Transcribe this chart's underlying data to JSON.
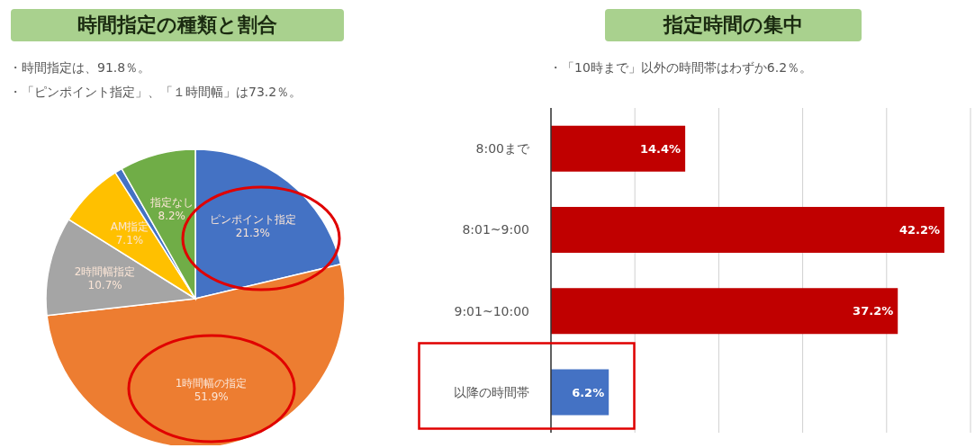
{
  "chart_data": [
    {
      "type": "pie",
      "title": "時間指定の種類と割合",
      "annotations": [
        "・時間指定は、91.8％。",
        "・「ピンポイント指定」、「１時間幅」は73.2％。"
      ],
      "categories": [
        "ピンポイント指定",
        "1時間幅の指定",
        "2時間幅指定",
        "AM指定",
        null,
        "指定なし"
      ],
      "values": [
        21.3,
        51.9,
        10.7,
        7.1,
        0.8,
        8.2
      ],
      "colors": [
        "#4472c4",
        "#ed7d31",
        "#a5a5a5",
        "#ffc000",
        "#4472c4",
        "#70ad47"
      ],
      "value_labels": [
        "21.3%",
        "51.9%",
        "10.7%",
        "7.1%",
        null,
        "8.2%"
      ]
    },
    {
      "type": "bar",
      "orientation": "horizontal",
      "title": "指定時間の集中",
      "annotations": [
        "・「10時まで」以外の時間帯はわずか6.2％。"
      ],
      "categories": [
        "8:00まで",
        "8:01~9:00",
        "9:01~10:00",
        "以降の時間帯"
      ],
      "values": [
        14.4,
        42.2,
        37.2,
        6.2
      ],
      "colors": [
        "#c00000",
        "#c00000",
        "#c00000",
        "#4472c4"
      ],
      "value_labels": [
        "14.4%",
        "42.2%",
        "37.2%",
        "6.2%"
      ],
      "tick_labels": "y",
      "grid": "x"
    }
  ]
}
